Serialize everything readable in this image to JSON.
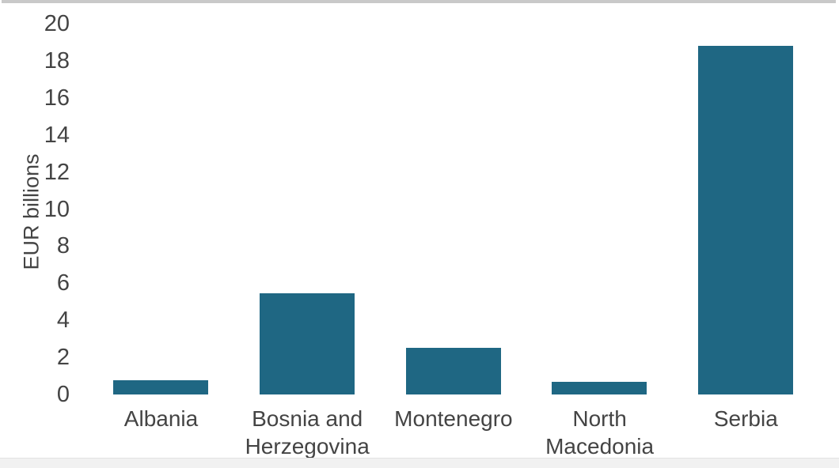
{
  "chart_data": {
    "type": "bar",
    "title": "",
    "xlabel": "",
    "ylabel": "EUR billions",
    "categories": [
      "Albania",
      "Bosnia and Herzegovina",
      "Montenegro",
      "North Macedonia",
      "Serbia"
    ],
    "values": [
      0.75,
      5.45,
      2.5,
      0.7,
      18.8
    ],
    "ylim": [
      0,
      20
    ],
    "yticks": [
      0,
      2,
      4,
      6,
      8,
      10,
      12,
      14,
      16,
      18,
      20
    ],
    "grid": false,
    "legend": false,
    "colors": {
      "bar": "#1f6783",
      "text": "#444444",
      "top_border": "#c9c9c9",
      "bottom_strip": "#f1f1f1"
    }
  }
}
